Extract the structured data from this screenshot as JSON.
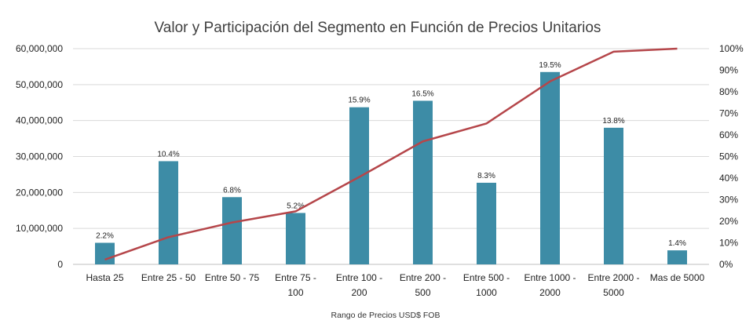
{
  "chart_data": {
    "type": "bar",
    "title": "Valor y Participación del Segmento en Función de Precios Unitarios",
    "xlabel": "Rango de Precios USD$ FOB",
    "ylabel": "",
    "ylim": [
      0,
      60000000
    ],
    "y2lim": [
      0,
      100
    ],
    "yticks": [
      "0",
      "10,000,000",
      "20,000,000",
      "30,000,000",
      "40,000,000",
      "50,000,000",
      "60,000,000"
    ],
    "y2ticks": [
      "0%",
      "10%",
      "20%",
      "30%",
      "40%",
      "50%",
      "60%",
      "70%",
      "80%",
      "90%",
      "100%"
    ],
    "categories": [
      [
        "Hasta 25"
      ],
      [
        "Entre 25 - 50"
      ],
      [
        "Entre 50 - 75"
      ],
      [
        "Entre 75 -",
        "100"
      ],
      [
        "Entre 100 -",
        "200"
      ],
      [
        "Entre 200 -",
        "500"
      ],
      [
        "Entre 500 -",
        "1000"
      ],
      [
        "Entre 1000 -",
        "2000"
      ],
      [
        "Entre 2000 -",
        "5000"
      ],
      [
        "Mas de 5000"
      ]
    ],
    "series": [
      {
        "type": "bar",
        "values": [
          6000000,
          28700000,
          18700000,
          14300000,
          43700000,
          45500000,
          22700000,
          53500000,
          38000000,
          3900000
        ],
        "labels": [
          "2.2%",
          "10.4%",
          "6.8%",
          "5.2%",
          "15.9%",
          "16.5%",
          "8.3%",
          "19.5%",
          "13.8%",
          "1.4%"
        ],
        "color": "#3d8ca6"
      },
      {
        "type": "line",
        "axis": "right",
        "values": [
          2.2,
          12.6,
          19.4,
          24.6,
          40.5,
          57.0,
          65.3,
          84.8,
          98.6,
          100
        ],
        "color": "#b5464a"
      }
    ],
    "grid": true,
    "legend": "none"
  }
}
